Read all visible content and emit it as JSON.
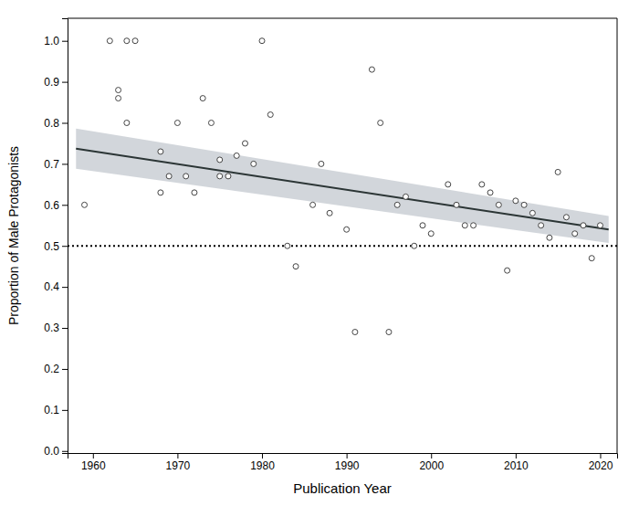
{
  "chart_data": {
    "type": "scatter",
    "xlabel": "Publication Year",
    "ylabel": "Proportion of Male Protagonists",
    "xlim": [
      1957,
      2022
    ],
    "ylim": [
      -0.005,
      1.055
    ],
    "xticks": [
      1960,
      1970,
      1980,
      1990,
      2000,
      2010,
      2020
    ],
    "yticks": [
      {
        "value": 0,
        "label": "0.0"
      },
      0.1,
      0.2,
      0.3,
      0.4,
      0.5,
      0.6,
      0.7,
      0.8,
      0.9,
      {
        "value": 1,
        "label": "1.0"
      }
    ],
    "grid": false,
    "series": [
      {
        "type": "band",
        "x": [
          1958,
          2021
        ],
        "lower": [
          0.688,
          0.507
        ],
        "upper": [
          0.786,
          0.573
        ],
        "color": "#adb5bd"
      },
      {
        "type": "hline",
        "values": [
          0.5
        ],
        "color": "black",
        "line_style": "dotted"
      },
      {
        "type": "line",
        "x": [
          1958,
          2021
        ],
        "values": [
          0.737,
          0.54
        ],
        "color": "#2b3535",
        "line_style": "solid"
      },
      {
        "type": "scatter",
        "marker": "circle",
        "color": "#444444",
        "x": [
          1959,
          1962,
          1963,
          1963,
          1964,
          1964,
          1965,
          1968,
          1968,
          1969,
          1970,
          1971,
          1972,
          1973,
          1974,
          1975,
          1975,
          1976,
          1977,
          1978,
          1979,
          1980,
          1981,
          1983,
          1984,
          1986,
          1987,
          1988,
          1990,
          1991,
          1993,
          1994,
          1995,
          1996,
          1997,
          1998,
          1999,
          2000,
          2002,
          2003,
          2004,
          2005,
          2006,
          2007,
          2008,
          2009,
          2010,
          2011,
          2012,
          2013,
          2014,
          2015,
          2016,
          2017,
          2018,
          2019,
          2020
        ],
        "values": [
          0.6,
          1.0,
          0.88,
          0.86,
          1.0,
          0.8,
          1.0,
          0.73,
          0.63,
          0.67,
          0.8,
          0.67,
          0.63,
          0.86,
          0.8,
          0.71,
          0.67,
          0.67,
          0.72,
          0.75,
          0.7,
          1.0,
          0.82,
          0.5,
          0.45,
          0.6,
          0.7,
          0.58,
          0.54,
          0.29,
          0.93,
          0.8,
          0.29,
          0.6,
          0.62,
          0.5,
          0.55,
          0.53,
          0.65,
          0.6,
          0.55,
          0.55,
          0.65,
          0.63,
          0.6,
          0.44,
          0.61,
          0.6,
          0.58,
          0.55,
          0.52,
          0.68,
          0.57,
          0.53,
          0.55,
          0.47,
          0.55
        ]
      }
    ]
  }
}
